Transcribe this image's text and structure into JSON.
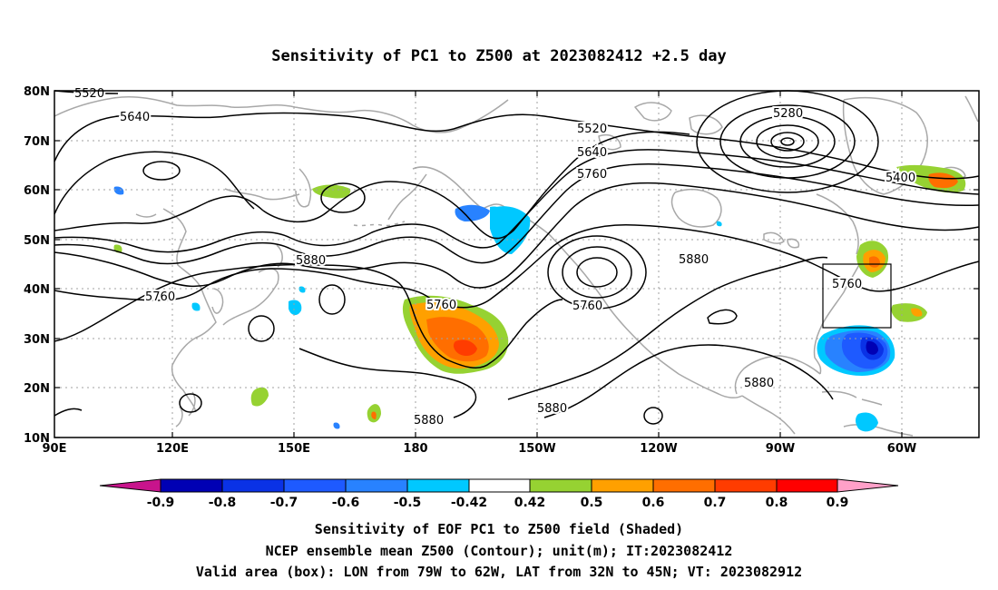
{
  "title": "Sensitivity of PC1 to Z500 at 2023082412 +2.5 day",
  "map": {
    "lat_ticks": [
      "80N",
      "70N",
      "60N",
      "50N",
      "40N",
      "30N",
      "20N",
      "10N"
    ],
    "lon_ticks": [
      "90E",
      "120E",
      "150E",
      "180",
      "150W",
      "120W",
      "90W",
      "60W"
    ],
    "grid": "dotted",
    "valid_box": {
      "lon_min": -79,
      "lon_max": -62,
      "lat_min": 32,
      "lat_max": 45
    }
  },
  "contour_labels": [
    "5520",
    "5640",
    "5520",
    "5640",
    "5760",
    "5280",
    "5400",
    "5880",
    "5760",
    "5760",
    "5880",
    "5760",
    "5760",
    "5880",
    "5880",
    "5880"
  ],
  "colorbar": {
    "labels": [
      "-0.9",
      "-0.8",
      "-0.7",
      "-0.6",
      "-0.5",
      "-0.42",
      "0.42",
      "0.5",
      "0.6",
      "0.7",
      "0.8",
      "0.9"
    ],
    "colors": [
      "#c8148c",
      "#0000b4",
      "#0a32e6",
      "#1e5aff",
      "#2882ff",
      "#00c8ff",
      "#ffffff",
      "#96d232",
      "#ffa000",
      "#ff6e00",
      "#ff3c00",
      "#ff0000",
      "#ffa0c8"
    ]
  },
  "caption": [
    "Sensitivity of EOF PC1 to Z500 field (Shaded)",
    "NCEP ensemble mean Z500 (Contour); unit(m); IT:2023082412",
    "Valid area (box): LON from 79W to 62W, LAT from 32N to 45N; VT: 2023082912"
  ]
}
